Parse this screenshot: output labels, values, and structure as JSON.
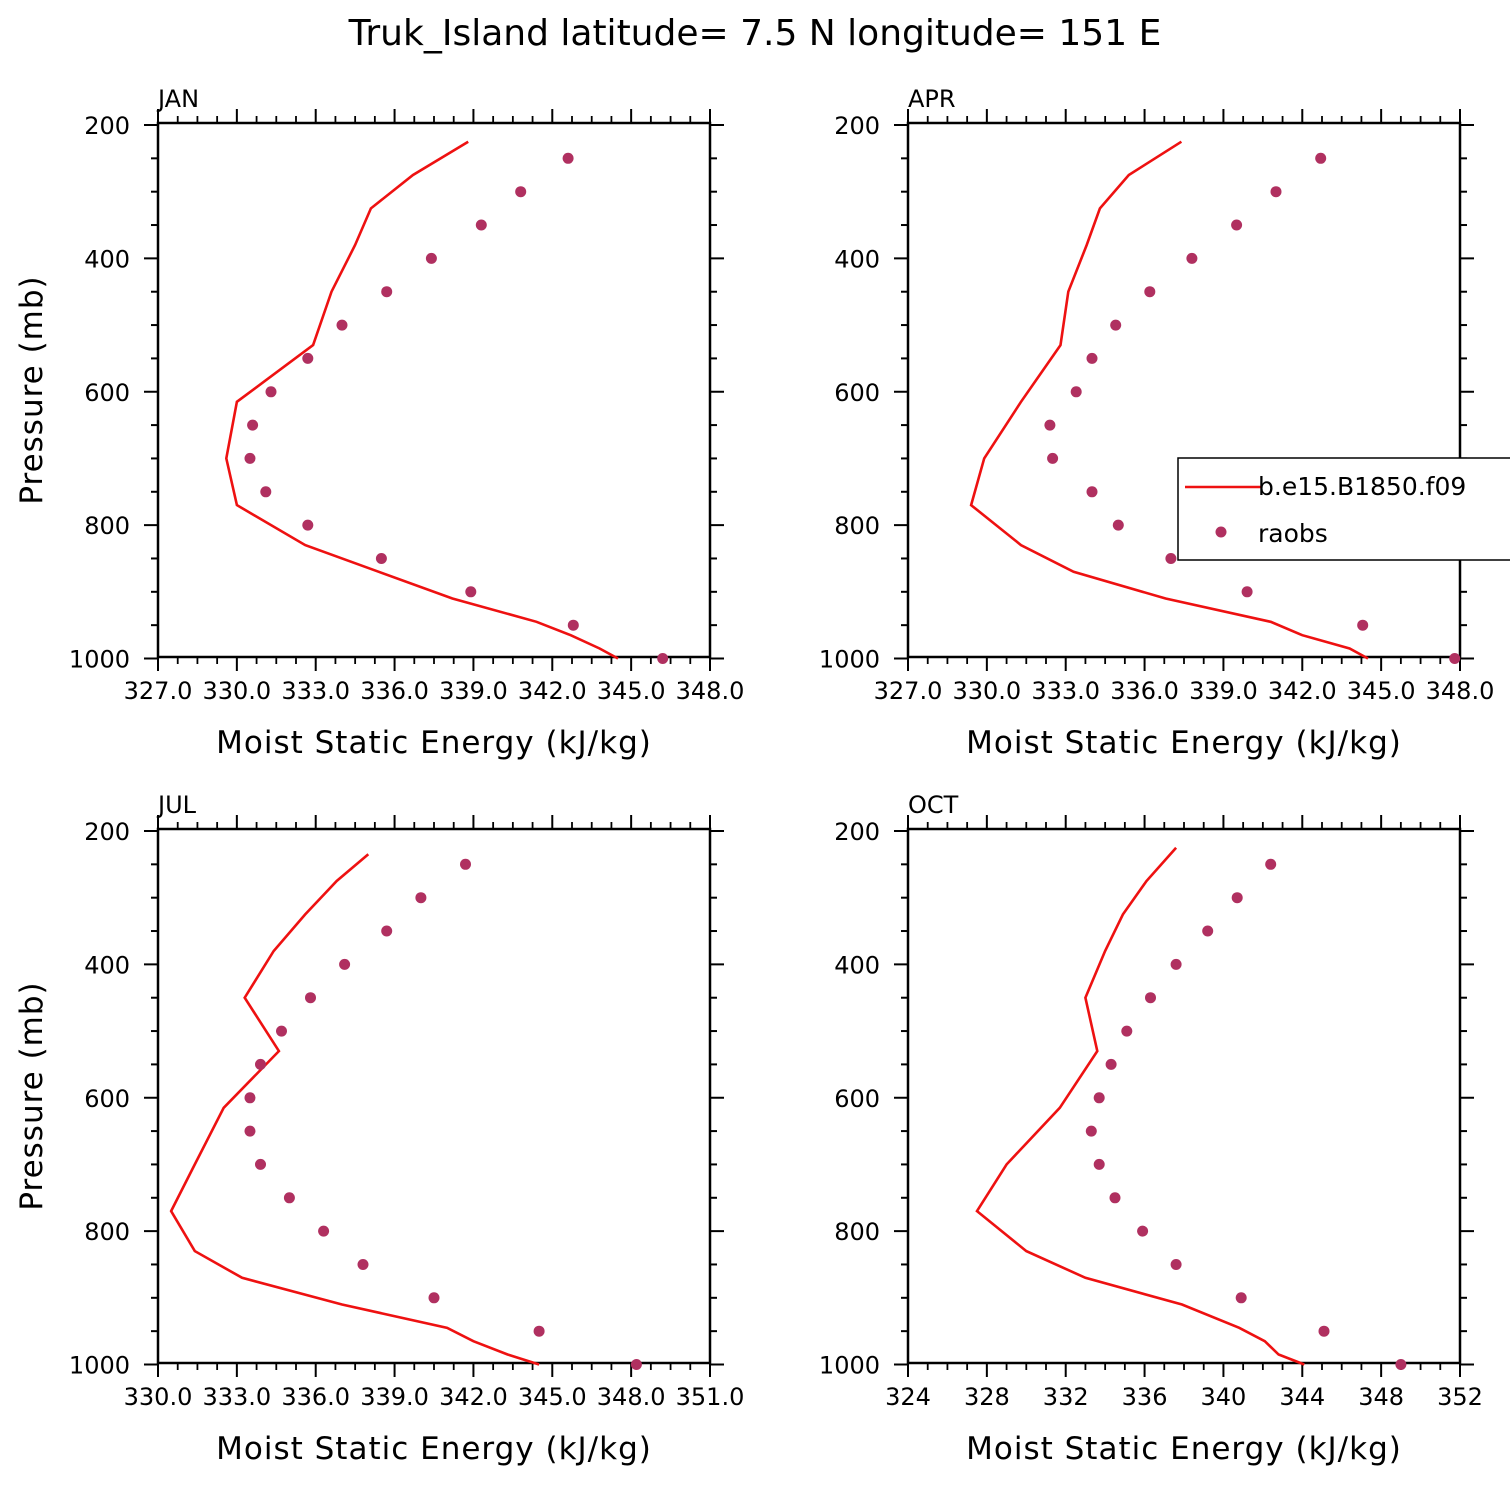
{
  "title": "Truk_Island   latitude= 7.5 N longitude= 151 E",
  "legend": {
    "model": "b.e15.B1850.f09",
    "obs": "raobs"
  },
  "colors": {
    "model": "#ee1111",
    "obs": "#b03060",
    "axis": "#000000"
  },
  "chart_data": [
    {
      "type": "line",
      "month": "JAN",
      "xlabel": "Moist Static Energy (kJ/kg)",
      "ylabel": "Pressure (mb)",
      "xlim": [
        327.0,
        348.0
      ],
      "ylim": [
        1000,
        200
      ],
      "x_ticks": [
        "327.0",
        "330.0",
        "333.0",
        "336.0",
        "339.0",
        "342.0",
        "345.0",
        "348.0"
      ],
      "y_ticks": [
        "200",
        "400",
        "600",
        "800",
        "1000"
      ],
      "model": {
        "p": [
          225,
          275,
          325,
          380,
          450,
          530,
          615,
          700,
          770,
          830,
          870,
          910,
          945,
          965,
          985,
          1000
        ],
        "mse": [
          338.8,
          336.7,
          335.1,
          334.5,
          333.6,
          332.9,
          330.0,
          329.6,
          330.0,
          332.6,
          335.4,
          338.2,
          341.4,
          342.7,
          343.8,
          344.5
        ]
      },
      "raobs": {
        "p": [
          250,
          300,
          350,
          400,
          450,
          500,
          550,
          600,
          650,
          700,
          750,
          800,
          850,
          900,
          950,
          1000
        ],
        "mse": [
          342.6,
          340.8,
          339.3,
          337.4,
          335.7,
          334.0,
          332.7,
          331.3,
          330.6,
          330.5,
          331.1,
          332.7,
          335.5,
          338.9,
          342.8,
          346.2
        ]
      }
    },
    {
      "type": "line",
      "month": "APR",
      "xlabel": "Moist Static Energy (kJ/kg)",
      "ylabel": "",
      "xlim": [
        327.0,
        348.0
      ],
      "ylim": [
        1000,
        200
      ],
      "x_ticks": [
        "327.0",
        "330.0",
        "333.0",
        "336.0",
        "339.0",
        "342.0",
        "345.0",
        "348.0"
      ],
      "y_ticks": [
        "200",
        "400",
        "600",
        "800",
        "1000"
      ],
      "model": {
        "p": [
          225,
          275,
          325,
          380,
          450,
          530,
          615,
          700,
          770,
          830,
          870,
          910,
          945,
          965,
          985,
          1000
        ],
        "mse": [
          337.4,
          335.4,
          334.3,
          333.8,
          333.1,
          332.8,
          331.3,
          329.9,
          329.4,
          331.3,
          333.3,
          336.8,
          340.8,
          342.0,
          343.8,
          344.5
        ]
      },
      "raobs": {
        "p": [
          250,
          300,
          350,
          400,
          450,
          500,
          550,
          600,
          650,
          700,
          750,
          800,
          850,
          900,
          950,
          1000
        ],
        "mse": [
          342.7,
          341.0,
          339.5,
          337.8,
          336.2,
          334.9,
          334.0,
          333.4,
          332.4,
          332.5,
          334.0,
          335.0,
          337.0,
          339.9,
          344.3,
          347.8
        ]
      }
    },
    {
      "type": "line",
      "month": "JUL",
      "xlabel": "Moist Static Energy (kJ/kg)",
      "ylabel": "Pressure (mb)",
      "xlim": [
        330.0,
        351.0
      ],
      "ylim": [
        1000,
        200
      ],
      "x_ticks": [
        "330.0",
        "333.0",
        "336.0",
        "339.0",
        "342.0",
        "345.0",
        "348.0",
        "351.0"
      ],
      "y_ticks": [
        "200",
        "400",
        "600",
        "800",
        "1000"
      ],
      "model": {
        "p": [
          235,
          275,
          325,
          380,
          450,
          530,
          615,
          700,
          770,
          830,
          870,
          910,
          945,
          965,
          985,
          1000
        ],
        "mse": [
          338.0,
          336.8,
          335.6,
          334.4,
          333.3,
          334.6,
          332.5,
          331.4,
          330.5,
          331.4,
          333.2,
          337.0,
          341.0,
          342.0,
          343.3,
          344.5
        ]
      },
      "raobs": {
        "p": [
          250,
          300,
          350,
          400,
          450,
          500,
          550,
          600,
          650,
          700,
          750,
          800,
          850,
          900,
          950,
          1000
        ],
        "mse": [
          341.7,
          340.0,
          338.7,
          337.1,
          335.8,
          334.7,
          333.9,
          333.5,
          333.5,
          333.9,
          335.0,
          336.3,
          337.8,
          340.5,
          344.5,
          348.2
        ]
      }
    },
    {
      "type": "line",
      "month": "OCT",
      "xlabel": "Moist Static Energy (kJ/kg)",
      "ylabel": "",
      "xlim": [
        324,
        352
      ],
      "ylim": [
        1000,
        200
      ],
      "x_ticks": [
        "324",
        "328",
        "332",
        "336",
        "340",
        "344",
        "348",
        "352"
      ],
      "y_ticks": [
        "200",
        "400",
        "600",
        "800",
        "1000"
      ],
      "model": {
        "p": [
          225,
          275,
          325,
          380,
          450,
          530,
          615,
          700,
          770,
          830,
          870,
          910,
          945,
          965,
          985,
          1000
        ],
        "mse": [
          337.6,
          336.1,
          334.9,
          334.0,
          333.0,
          333.6,
          331.7,
          329.0,
          327.5,
          330.0,
          333.0,
          337.9,
          340.8,
          342.1,
          342.8,
          344.1
        ]
      },
      "raobs": {
        "p": [
          250,
          300,
          350,
          400,
          450,
          500,
          550,
          600,
          650,
          700,
          750,
          800,
          850,
          900,
          950,
          1000
        ],
        "mse": [
          342.4,
          340.7,
          339.2,
          337.6,
          336.3,
          335.1,
          334.3,
          333.7,
          333.3,
          333.7,
          334.5,
          335.9,
          337.6,
          340.9,
          345.1,
          349.0
        ]
      }
    }
  ]
}
